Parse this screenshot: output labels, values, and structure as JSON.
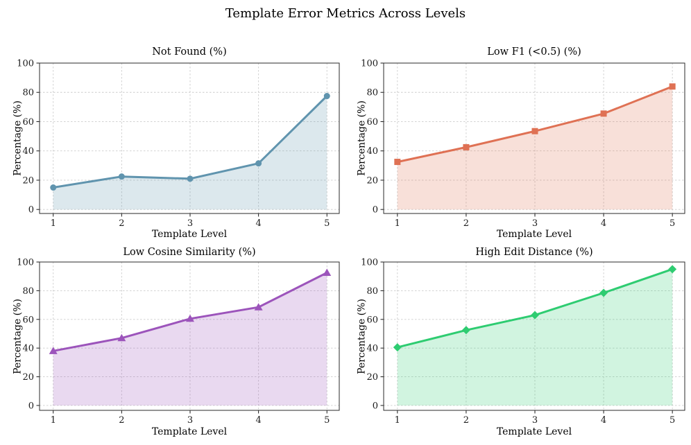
{
  "suptitle": "Template Error Metrics Across Levels",
  "chart_data": {
    "type": "line",
    "layout": "2x2 subplots, each a single-series line with translucent area fill down to y=0",
    "x": [
      1,
      2,
      3,
      4,
      5
    ],
    "xlabel": "Template Level",
    "ylabel": "Percentage (%)",
    "ylim": [
      0,
      100
    ],
    "yticks": [
      0,
      20,
      40,
      60,
      80,
      100
    ],
    "grid": "dashed horizontal and vertical gridlines at every tick",
    "legend": "none",
    "subplots": [
      {
        "title": "Not Found (%)",
        "position": "top-left",
        "marker": "circle",
        "color": "#6094ae",
        "fill_alpha": 0.22,
        "values": [
          15,
          22.5,
          21,
          31.5,
          77.5
        ]
      },
      {
        "title": "Low F1 (<0.5) (%)",
        "position": "top-right",
        "marker": "square",
        "color": "#df7154",
        "fill_alpha": 0.22,
        "values": [
          32.5,
          42.5,
          53.5,
          65.5,
          84
        ]
      },
      {
        "title": "Low Cosine Similarity (%)",
        "position": "bottom-left",
        "marker": "triangle-up",
        "color": "#9c54bb",
        "fill_alpha": 0.22,
        "values": [
          38,
          47,
          60.5,
          68.5,
          92.5
        ]
      },
      {
        "title": "High Edit Distance (%)",
        "position": "bottom-right",
        "marker": "diamond",
        "color": "#2ecc71",
        "fill_alpha": 0.22,
        "values": [
          40.5,
          52.5,
          63,
          78.5,
          95
        ]
      }
    ]
  }
}
